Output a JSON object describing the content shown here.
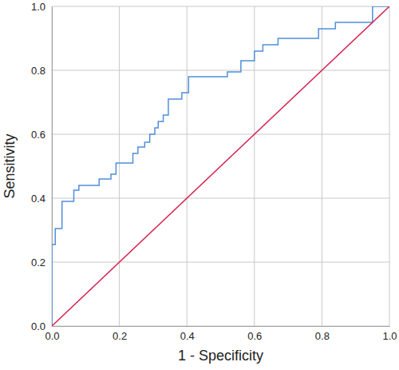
{
  "chart_data": {
    "type": "line",
    "x_label": "1 - Specificity",
    "y_label": "Sensitivity",
    "xlim": [
      0,
      1
    ],
    "ylim": [
      0,
      1
    ],
    "xticks": [
      {
        "value": 0,
        "label": "0.0"
      },
      0.2,
      0.4,
      0.6,
      0.8,
      {
        "value": 1,
        "label": "1.0"
      }
    ],
    "yticks": [
      {
        "value": 0,
        "label": "0.0"
      },
      0.2,
      0.4,
      0.6,
      0.8,
      {
        "value": 1,
        "label": "1.0"
      }
    ],
    "grid": true,
    "series": [
      {
        "color": "#4f8fdc",
        "x": [
          0,
          0,
          0.01,
          0.01,
          0.03,
          0.03,
          0.065,
          0.065,
          0.08,
          0.08,
          0.14,
          0.14,
          0.175,
          0.175,
          0.19,
          0.19,
          0.24,
          0.24,
          0.255,
          0.255,
          0.275,
          0.275,
          0.29,
          0.29,
          0.305,
          0.305,
          0.315,
          0.315,
          0.33,
          0.33,
          0.345,
          0.345,
          0.385,
          0.385,
          0.405,
          0.405,
          0.52,
          0.52,
          0.56,
          0.56,
          0.6,
          0.6,
          0.625,
          0.625,
          0.67,
          0.67,
          0.79,
          0.79,
          0.84,
          0.84,
          0.95,
          0.95,
          1
        ],
        "values": [
          0,
          0.255,
          0.255,
          0.305,
          0.305,
          0.39,
          0.39,
          0.425,
          0.425,
          0.44,
          0.44,
          0.46,
          0.46,
          0.475,
          0.475,
          0.51,
          0.51,
          0.54,
          0.54,
          0.56,
          0.56,
          0.575,
          0.575,
          0.6,
          0.6,
          0.62,
          0.62,
          0.64,
          0.64,
          0.66,
          0.66,
          0.71,
          0.71,
          0.73,
          0.73,
          0.78,
          0.78,
          0.795,
          0.795,
          0.83,
          0.83,
          0.86,
          0.86,
          0.88,
          0.88,
          0.9,
          0.9,
          0.93,
          0.93,
          0.95,
          0.95,
          1,
          1
        ]
      },
      {
        "color": "#d6204e",
        "x": [
          0,
          1
        ],
        "values": [
          0,
          1
        ]
      }
    ]
  }
}
